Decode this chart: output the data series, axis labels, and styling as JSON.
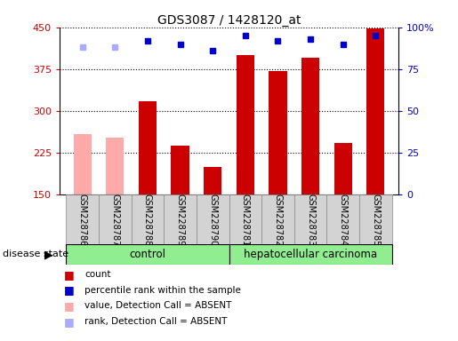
{
  "title": "GDS3087 / 1428120_at",
  "samples": [
    "GSM228786",
    "GSM228787",
    "GSM228788",
    "GSM228789",
    "GSM228790",
    "GSM228781",
    "GSM228782",
    "GSM228783",
    "GSM228784",
    "GSM228785"
  ],
  "counts": [
    258,
    252,
    318,
    238,
    200,
    400,
    372,
    395,
    242,
    448
  ],
  "absent_flags": [
    true,
    true,
    false,
    false,
    false,
    false,
    false,
    false,
    false,
    false
  ],
  "percentile_ranks": [
    88,
    88,
    92,
    90,
    86,
    95,
    92,
    93,
    90,
    95
  ],
  "absent_rank_flags": [
    true,
    true,
    false,
    false,
    false,
    false,
    false,
    false,
    false,
    false
  ],
  "ylim": [
    150,
    450
  ],
  "yticks": [
    150,
    225,
    300,
    375,
    450
  ],
  "right_yticks": [
    0,
    25,
    50,
    75,
    100
  ],
  "right_ylim": [
    0,
    100
  ],
  "bar_color_present": "#cc0000",
  "bar_color_absent": "#ffaaaa",
  "dot_color_present": "#0000cc",
  "dot_color_absent": "#aaaaff",
  "control_label": "control",
  "disease_label": "hepatocellular carcinoma",
  "disease_state_label": "disease state",
  "n_control": 5,
  "n_disease": 5,
  "legend_items": [
    {
      "label": "count",
      "color": "#cc0000"
    },
    {
      "label": "percentile rank within the sample",
      "color": "#0000cc"
    },
    {
      "label": "value, Detection Call = ABSENT",
      "color": "#ffaaaa"
    },
    {
      "label": "rank, Detection Call = ABSENT",
      "color": "#aaaaff"
    }
  ],
  "bar_width": 0.55
}
